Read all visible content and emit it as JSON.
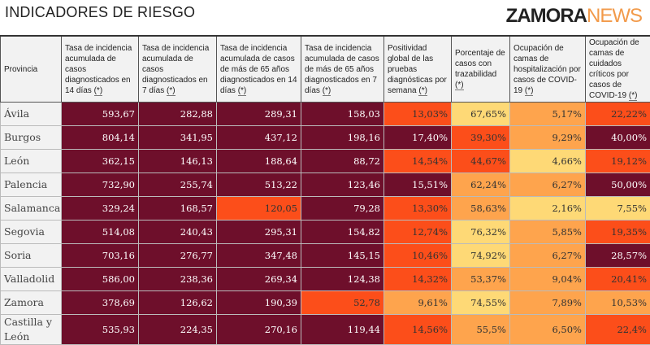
{
  "title": "INDICADORES DE RIESGO",
  "colors": {
    "level0": "#fed976",
    "level1": "#fea44d",
    "level2": "#fc4e1a",
    "level3": "#6e0f2b"
  },
  "headers": [
    "Provincia",
    "Tasa de incidencia acumulada de casos diagnosticados en 14 días",
    "Tasa de incidencia acumulada de casos diagnosticados en 7 días",
    "Tasa de incidencia acumulada de casos de más de 65 años diagnosticados en 14 días",
    "Tasa de incidencia acumulada de casos de más de 65 años diagnosticados en 7 días",
    "Positividad global de las pruebas diagnósticas por semana",
    "Porcentaje de casos con trazabilidad",
    "Ocupación de camas de hospitalización por casos de COVID-19",
    "Ocupación de camas de cuidados críticos por casos de COVID-19"
  ],
  "footnote_marker": "(*)",
  "rows": [
    {
      "provincia": "Ávila",
      "values": [
        "593,67",
        "282,88",
        "289,31",
        "158,03",
        "13,03%",
        "67,65%",
        "5,17%",
        "22,22%"
      ],
      "levels": [
        3,
        3,
        3,
        3,
        2,
        0,
        1,
        2
      ]
    },
    {
      "provincia": "Burgos",
      "values": [
        "804,14",
        "341,95",
        "437,12",
        "198,16",
        "17,40%",
        "39,30%",
        "9,29%",
        "40,00%"
      ],
      "levels": [
        3,
        3,
        3,
        3,
        3,
        2,
        1,
        3
      ]
    },
    {
      "provincia": "León",
      "values": [
        "362,15",
        "146,13",
        "188,64",
        "88,72",
        "14,54%",
        "44,67%",
        "4,66%",
        "19,12%"
      ],
      "levels": [
        3,
        3,
        3,
        3,
        2,
        2,
        0,
        2
      ]
    },
    {
      "provincia": "Palencia",
      "values": [
        "732,90",
        "255,74",
        "513,22",
        "123,46",
        "15,51%",
        "62,24%",
        "6,27%",
        "50,00%"
      ],
      "levels": [
        3,
        3,
        3,
        3,
        3,
        1,
        1,
        3
      ]
    },
    {
      "provincia": "Salamanca",
      "values": [
        "329,24",
        "168,57",
        "120,05",
        "79,28",
        "13,30%",
        "58,63%",
        "2,16%",
        "7,55%"
      ],
      "levels": [
        3,
        3,
        2,
        3,
        2,
        1,
        0,
        0
      ]
    },
    {
      "provincia": "Segovia",
      "values": [
        "514,08",
        "240,43",
        "295,31",
        "154,82",
        "12,74%",
        "76,32%",
        "5,85%",
        "19,35%"
      ],
      "levels": [
        3,
        3,
        3,
        3,
        2,
        0,
        1,
        2
      ]
    },
    {
      "provincia": "Soria",
      "values": [
        "703,16",
        "276,77",
        "347,48",
        "145,15",
        "10,46%",
        "74,92%",
        "6,27%",
        "28,57%"
      ],
      "levels": [
        3,
        3,
        3,
        3,
        2,
        0,
        1,
        3
      ]
    },
    {
      "provincia": "Valladolid",
      "values": [
        "586,00",
        "238,36",
        "269,34",
        "124,38",
        "14,32%",
        "53,37%",
        "9,04%",
        "20,41%"
      ],
      "levels": [
        3,
        3,
        3,
        3,
        2,
        1,
        1,
        2
      ]
    },
    {
      "provincia": "Zamora",
      "values": [
        "378,69",
        "126,62",
        "190,39",
        "52,78",
        "9,61%",
        "74,55%",
        "7,89%",
        "10,53%"
      ],
      "levels": [
        3,
        3,
        3,
        2,
        1,
        0,
        1,
        1
      ]
    },
    {
      "provincia": "Castilla y León",
      "values": [
        "535,93",
        "224,35",
        "270,16",
        "119,44",
        "14,56%",
        "55,5%",
        "6,50%",
        "22,4%"
      ],
      "levels": [
        3,
        3,
        3,
        3,
        2,
        1,
        1,
        2
      ]
    }
  ],
  "watermark": {
    "part1": "ZAMORA",
    "part2": "NEWS"
  }
}
